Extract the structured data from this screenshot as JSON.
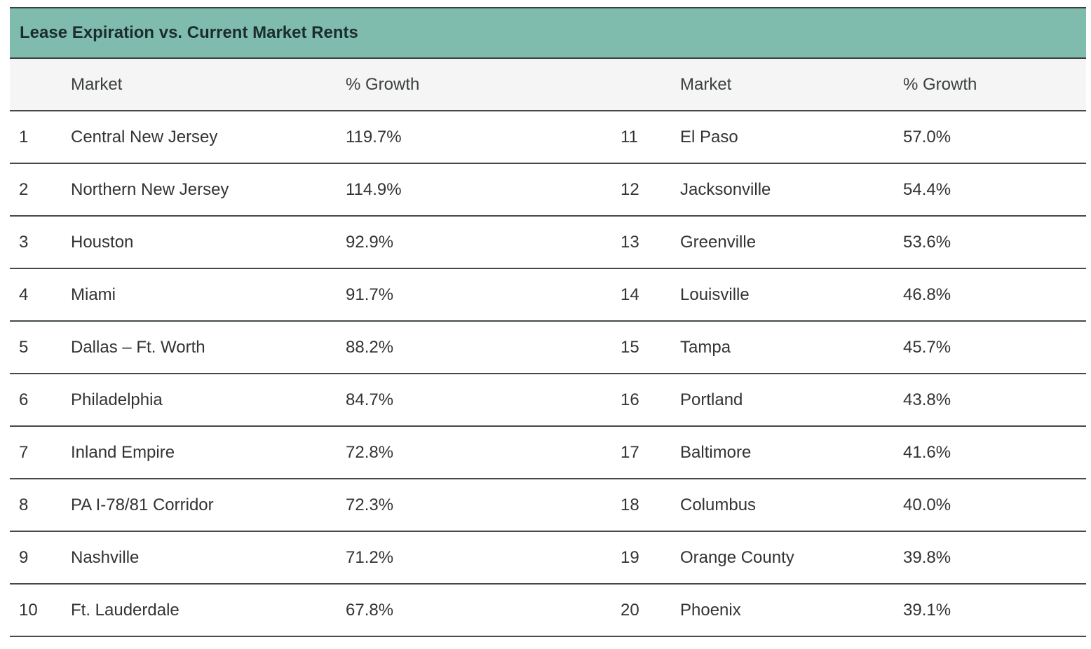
{
  "title": "Lease Expiration vs. Current Market Rents",
  "headers": {
    "market_left": "Market",
    "growth_left": "% Growth",
    "market_right": "Market",
    "growth_right": "% Growth"
  },
  "rows": [
    {
      "rank_left": "1",
      "market_left": "Central New Jersey",
      "growth_left": "119.7%",
      "rank_right": "11",
      "market_right": "El Paso",
      "growth_right": "57.0%"
    },
    {
      "rank_left": "2",
      "market_left": "Northern New Jersey",
      "growth_left": "114.9%",
      "rank_right": "12",
      "market_right": "Jacksonville",
      "growth_right": "54.4%"
    },
    {
      "rank_left": "3",
      "market_left": "Houston",
      "growth_left": "92.9%",
      "rank_right": "13",
      "market_right": "Greenville",
      "growth_right": "53.6%"
    },
    {
      "rank_left": "4",
      "market_left": "Miami",
      "growth_left": "91.7%",
      "rank_right": "14",
      "market_right": "Louisville",
      "growth_right": "46.8%"
    },
    {
      "rank_left": "5",
      "market_left": "Dallas – Ft. Worth",
      "growth_left": "88.2%",
      "rank_right": "15",
      "market_right": "Tampa",
      "growth_right": "45.7%"
    },
    {
      "rank_left": "6",
      "market_left": "Philadelphia",
      "growth_left": "84.7%",
      "rank_right": "16",
      "market_right": "Portland",
      "growth_right": "43.8%"
    },
    {
      "rank_left": "7",
      "market_left": "Inland Empire",
      "growth_left": "72.8%",
      "rank_right": "17",
      "market_right": "Baltimore",
      "growth_right": "41.6%"
    },
    {
      "rank_left": "8",
      "market_left": "PA I-78/81 Corridor",
      "growth_left": "72.3%",
      "rank_right": "18",
      "market_right": "Columbus",
      "growth_right": "40.0%"
    },
    {
      "rank_left": "9",
      "market_left": "Nashville",
      "growth_left": "71.2%",
      "rank_right": "19",
      "market_right": "Orange County",
      "growth_right": "39.8%"
    },
    {
      "rank_left": "10",
      "market_left": "Ft. Lauderdale",
      "growth_left": "67.8%",
      "rank_right": "20",
      "market_right": "Phoenix",
      "growth_right": "39.1%"
    }
  ],
  "colors": {
    "title_bar": "#80bcad",
    "header_row": "#f5f5f5"
  }
}
